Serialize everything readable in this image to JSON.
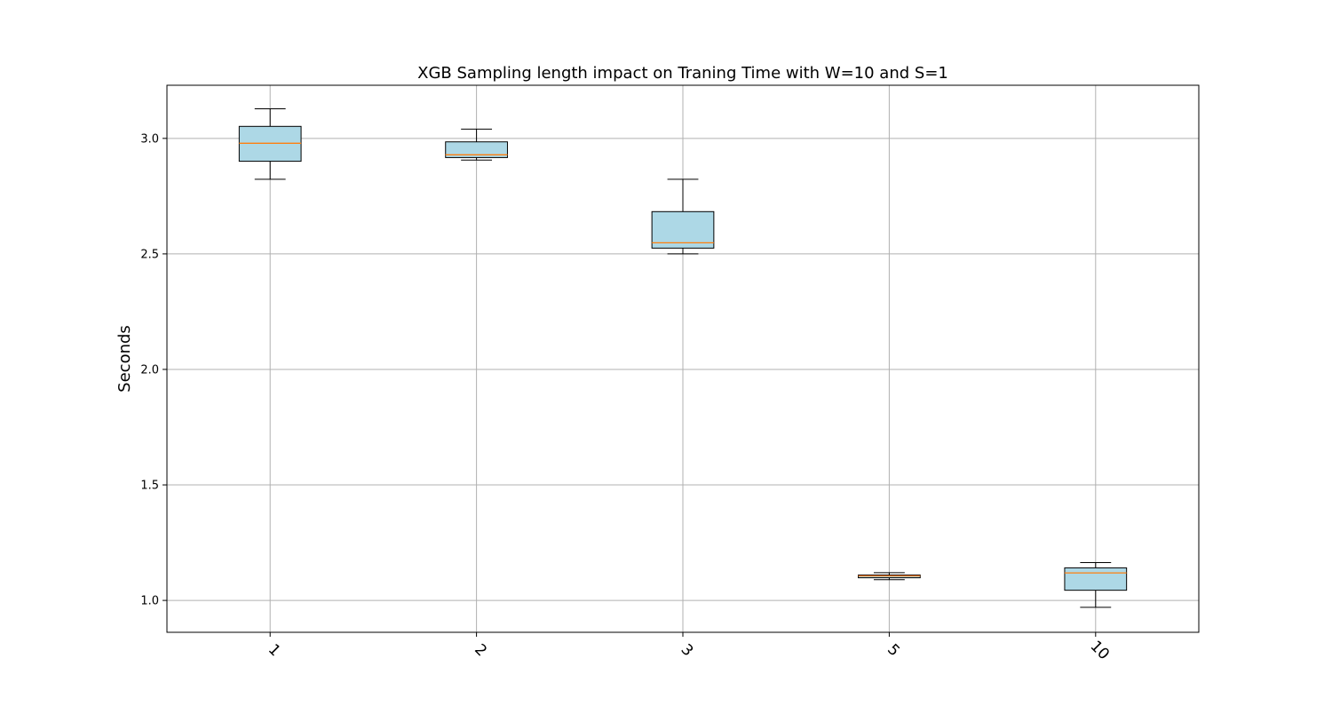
{
  "chart_data": {
    "type": "box",
    "title": "XGB Sampling length impact on Traning Time with W=10 and S=1",
    "xlabel": "",
    "ylabel": "Seconds",
    "categories": [
      "1",
      "2",
      "3",
      "5",
      "10"
    ],
    "ylim": [
      0.862,
      3.23
    ],
    "yticks": [
      1.0,
      1.5,
      2.0,
      2.5,
      3.0
    ],
    "ytick_labels": [
      "1.0",
      "1.5",
      "2.0",
      "2.5",
      "3.0"
    ],
    "grid": true,
    "boxes": [
      {
        "category": "1",
        "whisker_low": 2.823,
        "q1": 2.901,
        "median": 2.979,
        "q3": 3.052,
        "whisker_high": 3.128
      },
      {
        "category": "2",
        "whisker_low": 2.906,
        "q1": 2.917,
        "median": 2.929,
        "q3": 2.985,
        "whisker_high": 3.04
      },
      {
        "category": "3",
        "whisker_low": 2.5,
        "q1": 2.525,
        "median": 2.548,
        "q3": 2.683,
        "whisker_high": 2.823
      },
      {
        "category": "5",
        "whisker_low": 1.09,
        "q1": 1.098,
        "median": 1.106,
        "q3": 1.11,
        "whisker_high": 1.12
      },
      {
        "category": "10",
        "whisker_low": 0.97,
        "q1": 1.044,
        "median": 1.119,
        "q3": 1.141,
        "whisker_high": 1.164
      }
    ],
    "colors": {
      "box_fill": "#add8e6",
      "box_edge": "#000000",
      "median": "#ff7f0e",
      "grid": "#b0b0b0",
      "axes": "#000000",
      "background": "#ffffff"
    }
  }
}
